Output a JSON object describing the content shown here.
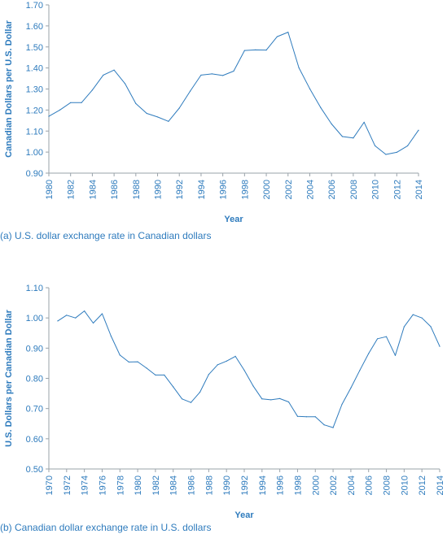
{
  "chart_data": [
    {
      "type": "line",
      "xlabel": "Year",
      "ylabel": "Canadian Dollars per U.S. Dollar",
      "caption": "(a) U.S. dollar exchange rate in Canadian dollars",
      "ylim": [
        0.9,
        1.7
      ],
      "xlim": [
        1980,
        2014
      ],
      "yticks": [
        "0.90",
        "1.00",
        "1.10",
        "1.20",
        "1.30",
        "1.40",
        "1.50",
        "1.60",
        "1.70"
      ],
      "xticks": [
        "1980",
        "1982",
        "1984",
        "1986",
        "1988",
        "1990",
        "1992",
        "1994",
        "1996",
        "1998",
        "2000",
        "2002",
        "2004",
        "2006",
        "2008",
        "2010",
        "2012",
        "2014"
      ],
      "grid": false,
      "line_color": "#2e7bbd",
      "x": [
        1980,
        1981,
        1982,
        1983,
        1984,
        1985,
        1986,
        1987,
        1988,
        1989,
        1990,
        1991,
        1992,
        1993,
        1994,
        1995,
        1996,
        1997,
        1998,
        1999,
        2000,
        2001,
        2002,
        2003,
        2004,
        2005,
        2006,
        2007,
        2008,
        2009,
        2010,
        2011,
        2012,
        2013,
        2014
      ],
      "y": [
        1.17,
        1.2,
        1.235,
        1.235,
        1.295,
        1.366,
        1.39,
        1.326,
        1.231,
        1.184,
        1.167,
        1.146,
        1.209,
        1.29,
        1.366,
        1.372,
        1.364,
        1.385,
        1.483,
        1.486,
        1.485,
        1.549,
        1.57,
        1.401,
        1.301,
        1.212,
        1.134,
        1.074,
        1.067,
        1.142,
        1.03,
        0.989,
        0.999,
        1.03,
        1.104
      ]
    },
    {
      "type": "line",
      "xlabel": "Year",
      "ylabel": "U.S. Dollars per Canadian Dollar",
      "caption": "(b) Canadian dollar exchange rate in U.S. dollars",
      "ylim": [
        0.5,
        1.1
      ],
      "xlim": [
        1970,
        2014
      ],
      "yticks": [
        "0.50",
        "0.60",
        "0.70",
        "0.80",
        "0.90",
        "1.00",
        "1.10"
      ],
      "xticks": [
        "1970",
        "1972",
        "1974",
        "1976",
        "1978",
        "1980",
        "1982",
        "1984",
        "1986",
        "1988",
        "1990",
        "1992",
        "1994",
        "1996",
        "1998",
        "2000",
        "2002",
        "2004",
        "2006",
        "2008",
        "2010",
        "2012",
        "2014"
      ],
      "grid": false,
      "line_color": "#2e7bbd",
      "x": [
        1971,
        1972,
        1973,
        1974,
        1975,
        1976,
        1977,
        1978,
        1979,
        1980,
        1981,
        1982,
        1983,
        1984,
        1985,
        1986,
        1987,
        1988,
        1989,
        1990,
        1991,
        1992,
        1993,
        1994,
        1995,
        1996,
        1997,
        1998,
        1999,
        2000,
        2001,
        2002,
        2003,
        2004,
        2005,
        2006,
        2007,
        2008,
        2009,
        2010,
        2011,
        2012,
        2013,
        2014
      ],
      "y": [
        0.99,
        1.009,
        1.0,
        1.023,
        0.983,
        1.014,
        0.94,
        0.877,
        0.854,
        0.855,
        0.834,
        0.811,
        0.811,
        0.772,
        0.732,
        0.72,
        0.754,
        0.813,
        0.845,
        0.857,
        0.873,
        0.827,
        0.775,
        0.732,
        0.729,
        0.733,
        0.722,
        0.674,
        0.673,
        0.673,
        0.646,
        0.637,
        0.714,
        0.768,
        0.826,
        0.882,
        0.931,
        0.938,
        0.876,
        0.971,
        1.011,
        1.0,
        0.971,
        0.906
      ]
    }
  ]
}
